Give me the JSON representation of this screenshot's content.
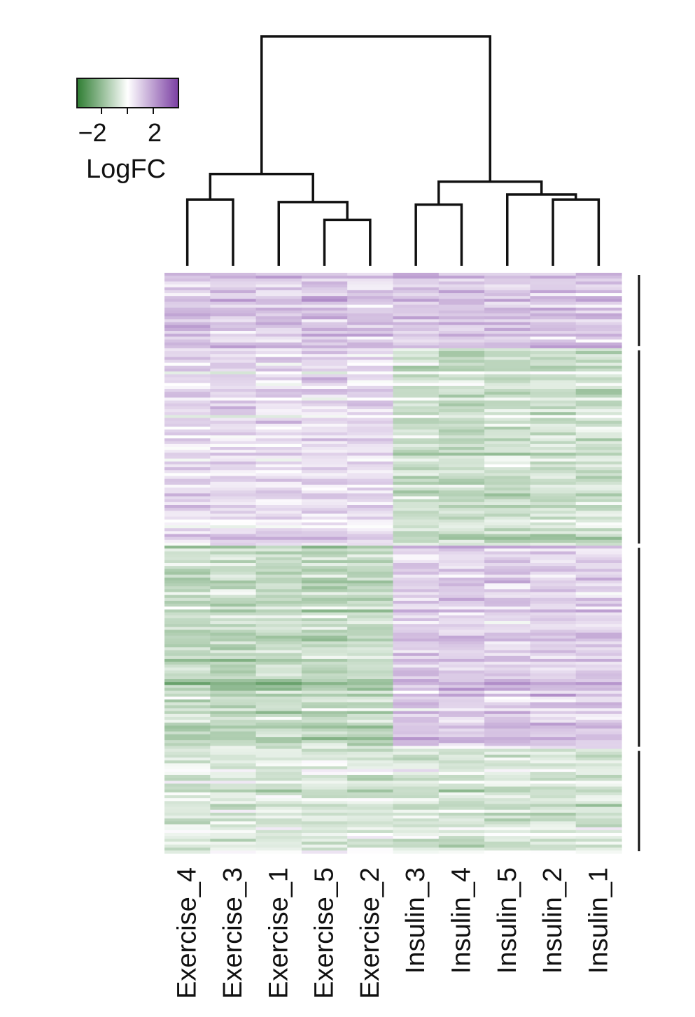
{
  "chart_data": {
    "type": "heatmap",
    "title": "",
    "columns": [
      "Exercise_4",
      "Exercise_3",
      "Exercise_1",
      "Exercise_5",
      "Exercise_2",
      "Insulin_3",
      "Insulin_4",
      "Insulin_5",
      "Insulin_2",
      "Insulin_1"
    ],
    "column_groups": [
      {
        "name": "Exercise",
        "members": [
          "Exercise_4",
          "Exercise_3",
          "Exercise_1",
          "Exercise_5",
          "Exercise_2"
        ]
      },
      {
        "name": "Insulin",
        "members": [
          "Insulin_3",
          "Insulin_4",
          "Insulin_5",
          "Insulin_2",
          "Insulin_1"
        ]
      }
    ],
    "dendrogram": {
      "merges": [
        {
          "a": "Exercise_4",
          "b": "Exercise_3",
          "height": 0.26
        },
        {
          "a": "Exercise_5",
          "b": "Exercise_2",
          "height": 0.18
        },
        {
          "a": "Exercise_1",
          "b": "Exercise_5+Exercise_2",
          "height": 0.25
        },
        {
          "a": "Exercise_4+Exercise_3",
          "b": "Exercise_1+Exercise_5+Exercise_2",
          "height": 0.36
        },
        {
          "a": "Insulin_3",
          "b": "Insulin_4",
          "height": 0.24
        },
        {
          "a": "Insulin_2",
          "b": "Insulin_1",
          "height": 0.26
        },
        {
          "a": "Insulin_5",
          "b": "Insulin_2+Insulin_1",
          "height": 0.28
        },
        {
          "a": "Insulin_3+Insulin_4",
          "b": "Insulin_5+Insulin_2+Insulin_1",
          "height": 0.33
        },
        {
          "a": "Exercise",
          "b": "Insulin",
          "height": 0.9
        }
      ]
    },
    "row_clusters": [
      {
        "fraction": 0.13,
        "pattern": "Exercise up, Insulin up",
        "exercise_mean": 0.9,
        "insulin_mean": 0.9
      },
      {
        "fraction": 0.34,
        "pattern": "Exercise up, Insulin down",
        "exercise_mean": 0.5,
        "insulin_mean": -0.7
      },
      {
        "fraction": 0.35,
        "pattern": "Exercise down, Insulin up",
        "exercise_mean": -0.9,
        "insulin_mean": 0.8
      },
      {
        "fraction": 0.18,
        "pattern": "Exercise down, Insulin down",
        "exercise_mean": -0.5,
        "insulin_mean": -0.6
      }
    ],
    "color_scale": {
      "low": "#2e7d32",
      "mid": "#ffffff",
      "high": "#7b3fa3",
      "range": [
        -3,
        3
      ],
      "legend_ticks": [
        "−2",
        "2"
      ],
      "legend_title": "LogFC"
    }
  }
}
